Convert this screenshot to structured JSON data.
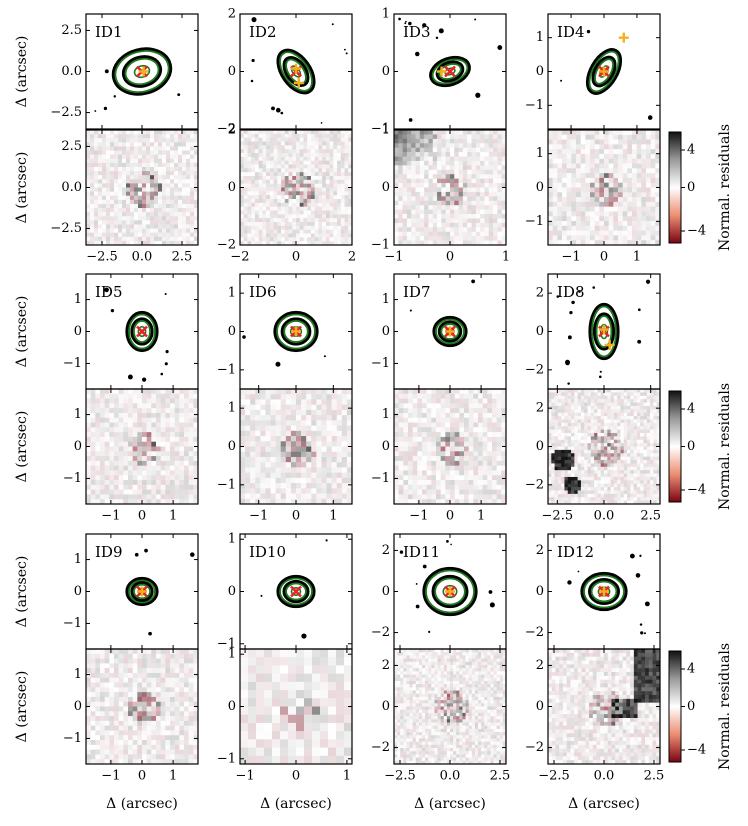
{
  "figure": {
    "y_axis_label": "Δ (arcsec)",
    "x_axis_label": "Δ (arcsec)",
    "colorbar_label": "Normal. residuals",
    "colorbar_ticks": [
      "4",
      "0",
      "−4"
    ]
  },
  "chart_data": [
    {
      "type": "image",
      "id": "ID1",
      "xlim": [
        -3.5,
        3.5
      ],
      "ylim": [
        -3.5,
        3.5
      ],
      "xticks": [
        "−2.5",
        "0.0",
        "2.5"
      ],
      "yticks": [
        "2.5",
        "0.0",
        "−2.5"
      ],
      "markers": [
        {
          "kind": "x",
          "x": 0.0,
          "y": 0.0
        },
        {
          "kind": "plus",
          "x": 0.1,
          "y": 0.0
        }
      ]
    },
    {
      "type": "image",
      "id": "ID2",
      "xlim": [
        -2,
        2
      ],
      "ylim": [
        -2,
        2
      ],
      "xticks": [
        "−2",
        "0",
        "2"
      ],
      "yticks": [
        "2",
        "0",
        "−2"
      ],
      "markers": [
        {
          "kind": "x",
          "x": 0.0,
          "y": 0.0
        },
        {
          "kind": "plus",
          "x": 0.1,
          "y": -0.4
        },
        {
          "kind": "plus",
          "x": 0.0,
          "y": 0.1
        }
      ]
    },
    {
      "type": "image",
      "id": "ID3",
      "xlim": [
        -1,
        1
      ],
      "ylim": [
        -1,
        1
      ],
      "xticks": [
        "−1",
        "0",
        "1"
      ],
      "yticks": [
        "1",
        "0",
        "−1"
      ],
      "markers": [
        {
          "kind": "x",
          "x": 0.0,
          "y": 0.0
        },
        {
          "kind": "plus",
          "x": -0.15,
          "y": 0.0
        }
      ]
    },
    {
      "type": "image",
      "id": "ID4",
      "xlim": [
        -1.7,
        1.7
      ],
      "ylim": [
        -1.7,
        1.7
      ],
      "xticks": [
        "−1",
        "0",
        "1"
      ],
      "yticks": [
        "1",
        "0",
        "−1"
      ],
      "markers": [
        {
          "kind": "x",
          "x": 0.0,
          "y": 0.0
        },
        {
          "kind": "plus",
          "x": 0.6,
          "y": 1.0
        },
        {
          "kind": "plus",
          "x": 0.0,
          "y": 0.0
        }
      ]
    },
    {
      "type": "image",
      "id": "ID5",
      "xlim": [
        -1.8,
        1.8
      ],
      "ylim": [
        -1.8,
        1.8
      ],
      "xticks": [
        "−1",
        "0",
        "1"
      ],
      "yticks": [
        "1",
        "0",
        "−1"
      ],
      "markers": [
        {
          "kind": "x",
          "x": 0.0,
          "y": 0.0
        }
      ]
    },
    {
      "type": "image",
      "id": "ID6",
      "xlim": [
        -1.5,
        1.5
      ],
      "ylim": [
        -1.5,
        1.5
      ],
      "xticks": [
        "−1",
        "0",
        "1"
      ],
      "yticks": [
        "1",
        "0",
        "−1"
      ],
      "markers": [
        {
          "kind": "x",
          "x": 0.0,
          "y": 0.0
        },
        {
          "kind": "plus",
          "x": 0.0,
          "y": 0.0
        }
      ]
    },
    {
      "type": "image",
      "id": "ID7",
      "xlim": [
        -1.8,
        1.8
      ],
      "ylim": [
        -1.8,
        1.8
      ],
      "xticks": [
        "−1",
        "0",
        "1"
      ],
      "yticks": [
        "1",
        "0",
        "−1"
      ],
      "markers": [
        {
          "kind": "x",
          "x": 0.0,
          "y": 0.0
        },
        {
          "kind": "plus",
          "x": 0.0,
          "y": 0.0
        }
      ]
    },
    {
      "type": "image",
      "id": "ID8",
      "xlim": [
        -3,
        3
      ],
      "ylim": [
        -3,
        3
      ],
      "xticks": [
        "−2.5",
        "0.0",
        "2.5"
      ],
      "yticks": [
        "2",
        "0",
        "−2"
      ],
      "markers": [
        {
          "kind": "x",
          "x": 0.0,
          "y": 0.0
        },
        {
          "kind": "plus",
          "x": 0.3,
          "y": -0.7
        },
        {
          "kind": "plus",
          "x": 0.0,
          "y": 0.1
        }
      ]
    },
    {
      "type": "image",
      "id": "ID9",
      "xlim": [
        -1.8,
        1.8
      ],
      "ylim": [
        -1.8,
        1.8
      ],
      "xticks": [
        "−1",
        "0",
        "1"
      ],
      "yticks": [
        "1",
        "0",
        "−1"
      ],
      "markers": [
        {
          "kind": "x",
          "x": 0.0,
          "y": 0.0
        },
        {
          "kind": "plus",
          "x": 0.0,
          "y": 0.0
        }
      ]
    },
    {
      "type": "image",
      "id": "ID10",
      "xlim": [
        -1.1,
        1.1
      ],
      "ylim": [
        -1.1,
        1.1
      ],
      "xticks": [
        "−1",
        "0",
        "1"
      ],
      "yticks": [
        "1",
        "0",
        "−1"
      ],
      "markers": [
        {
          "kind": "x",
          "x": 0.0,
          "y": 0.0
        }
      ]
    },
    {
      "type": "image",
      "id": "ID11",
      "xlim": [
        -2.8,
        2.8
      ],
      "ylim": [
        -2.8,
        2.8
      ],
      "xticks": [
        "−2.5",
        "0.0",
        "2.5"
      ],
      "yticks": [
        "2",
        "0",
        "−2"
      ],
      "markers": [
        {
          "kind": "x",
          "x": 0.0,
          "y": 0.0
        },
        {
          "kind": "plus",
          "x": 0.0,
          "y": 0.0
        }
      ]
    },
    {
      "type": "image",
      "id": "ID12",
      "xlim": [
        -2.8,
        2.8
      ],
      "ylim": [
        -2.8,
        2.8
      ],
      "xticks": [
        "−2.5",
        "0.0",
        "2.5"
      ],
      "yticks": [
        "2",
        "0",
        "−2"
      ],
      "markers": [
        {
          "kind": "x",
          "x": 0.0,
          "y": 0.0
        },
        {
          "kind": "plus",
          "x": 0.0,
          "y": 0.0
        }
      ]
    }
  ]
}
